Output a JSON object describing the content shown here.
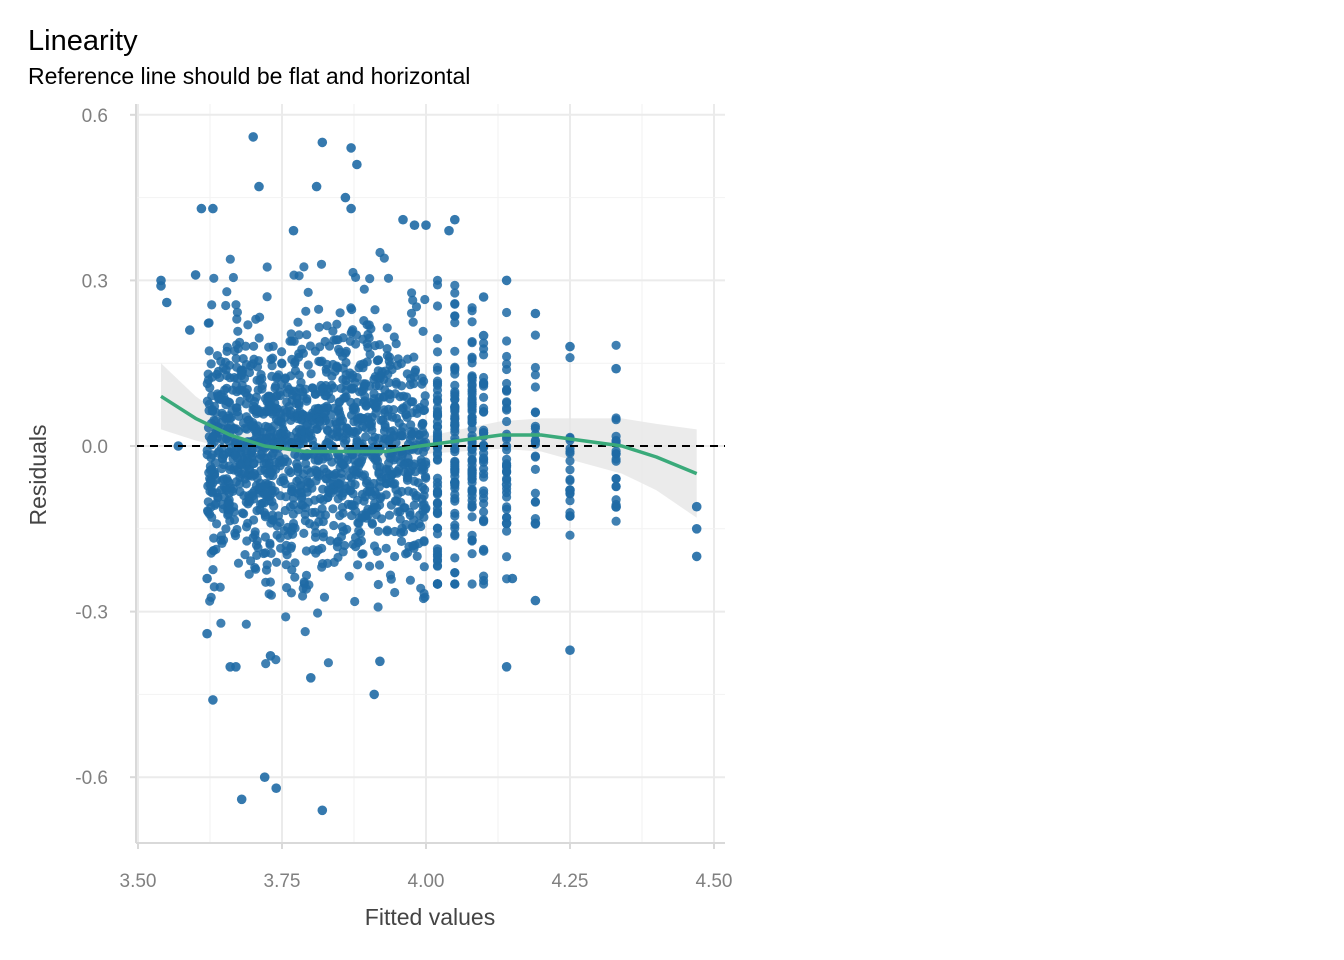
{
  "chart_data": {
    "type": "scatter",
    "title": "Linearity",
    "subtitle": "Reference line should be flat and horizontal",
    "xlabel": "Fitted values",
    "ylabel": "Residuals",
    "xlim": [
      3.5,
      4.5
    ],
    "ylim": [
      -0.7,
      0.6
    ],
    "x_ticks": [
      3.5,
      3.75,
      4.0,
      4.25,
      4.5
    ],
    "x_tick_labels": [
      "3.50",
      "3.75",
      "4.00",
      "4.25",
      "4.50"
    ],
    "y_ticks": [
      -0.6,
      -0.3,
      0.0,
      0.3,
      0.6
    ],
    "y_tick_labels": [
      "-0.6",
      "-0.3",
      "0.0",
      "0.3",
      "0.6"
    ],
    "grid": true,
    "point_color": "#1f6aa5",
    "smooth_color": "#3aaa7a",
    "band_color": "#e6e6e6",
    "reference_line": {
      "y": 0.0,
      "style": "dashed",
      "color": "#000000"
    },
    "series": [
      {
        "values": [
          {
            "x": 3.54,
            "y": 0.3
          },
          {
            "x": 3.54,
            "y": 0.29
          },
          {
            "x": 3.55,
            "y": 0.26
          },
          {
            "x": 3.57,
            "y": 0.0
          },
          {
            "x": 3.59,
            "y": 0.21
          },
          {
            "x": 3.6,
            "y": 0.31
          },
          {
            "x": 3.61,
            "y": 0.43
          },
          {
            "x": 3.63,
            "y": 0.43
          },
          {
            "x": 3.62,
            "y": -0.24
          },
          {
            "x": 3.63,
            "y": -0.46
          },
          {
            "x": 3.62,
            "y": -0.34
          },
          {
            "x": 3.66,
            "y": -0.4
          },
          {
            "x": 3.67,
            "y": -0.4
          },
          {
            "x": 3.68,
            "y": -0.64
          },
          {
            "x": 3.7,
            "y": 0.56
          },
          {
            "x": 3.71,
            "y": 0.47
          },
          {
            "x": 3.72,
            "y": -0.6
          },
          {
            "x": 3.74,
            "y": -0.62
          },
          {
            "x": 3.73,
            "y": -0.38
          },
          {
            "x": 3.77,
            "y": 0.39
          },
          {
            "x": 3.81,
            "y": 0.47
          },
          {
            "x": 3.82,
            "y": 0.55
          },
          {
            "x": 3.82,
            "y": -0.66
          },
          {
            "x": 3.8,
            "y": -0.42
          },
          {
            "x": 3.87,
            "y": 0.54
          },
          {
            "x": 3.88,
            "y": 0.51
          },
          {
            "x": 3.86,
            "y": 0.45
          },
          {
            "x": 3.87,
            "y": 0.43
          },
          {
            "x": 3.91,
            "y": -0.45
          },
          {
            "x": 3.92,
            "y": -0.39
          },
          {
            "x": 3.96,
            "y": 0.41
          },
          {
            "x": 3.98,
            "y": 0.4
          },
          {
            "x": 4.0,
            "y": 0.4
          },
          {
            "x": 4.05,
            "y": 0.41
          },
          {
            "x": 4.04,
            "y": 0.39
          },
          {
            "x": 4.14,
            "y": -0.4
          },
          {
            "x": 4.14,
            "y": 0.3
          },
          {
            "x": 4.1,
            "y": 0.27
          },
          {
            "x": 4.19,
            "y": -0.28
          },
          {
            "x": 4.25,
            "y": -0.37
          },
          {
            "x": 4.25,
            "y": 0.18
          },
          {
            "x": 4.25,
            "y": -0.08
          },
          {
            "x": 4.33,
            "y": 0.14
          },
          {
            "x": 4.33,
            "y": -0.11
          },
          {
            "x": 4.47,
            "y": -0.11
          },
          {
            "x": 4.47,
            "y": -0.15
          },
          {
            "x": 4.47,
            "y": -0.2
          },
          {
            "x": 4.19,
            "y": 0.24
          },
          {
            "x": 4.19,
            "y": -0.14
          },
          {
            "x": 4.14,
            "y": -0.14
          },
          {
            "x": 4.14,
            "y": -0.07
          },
          {
            "x": 4.1,
            "y": -0.19
          },
          {
            "x": 4.1,
            "y": 0.2
          },
          {
            "x": 4.15,
            "y": -0.24
          }
        ]
      }
    ],
    "smooth_curve": [
      {
        "x": 3.54,
        "y": 0.09
      },
      {
        "x": 3.6,
        "y": 0.05
      },
      {
        "x": 3.66,
        "y": 0.02
      },
      {
        "x": 3.72,
        "y": 0.0
      },
      {
        "x": 3.79,
        "y": -0.01
      },
      {
        "x": 3.86,
        "y": -0.01
      },
      {
        "x": 3.93,
        "y": -0.01
      },
      {
        "x": 3.99,
        "y": 0.0
      },
      {
        "x": 4.06,
        "y": 0.01
      },
      {
        "x": 4.13,
        "y": 0.02
      },
      {
        "x": 4.2,
        "y": 0.02
      },
      {
        "x": 4.27,
        "y": 0.01
      },
      {
        "x": 4.34,
        "y": 0.0
      },
      {
        "x": 4.4,
        "y": -0.02
      },
      {
        "x": 4.47,
        "y": -0.05
      }
    ],
    "smooth_band_halfwidth": [
      0.06,
      0.04,
      0.025,
      0.02,
      0.015,
      0.015,
      0.015,
      0.015,
      0.02,
      0.025,
      0.03,
      0.04,
      0.05,
      0.06,
      0.08
    ]
  }
}
